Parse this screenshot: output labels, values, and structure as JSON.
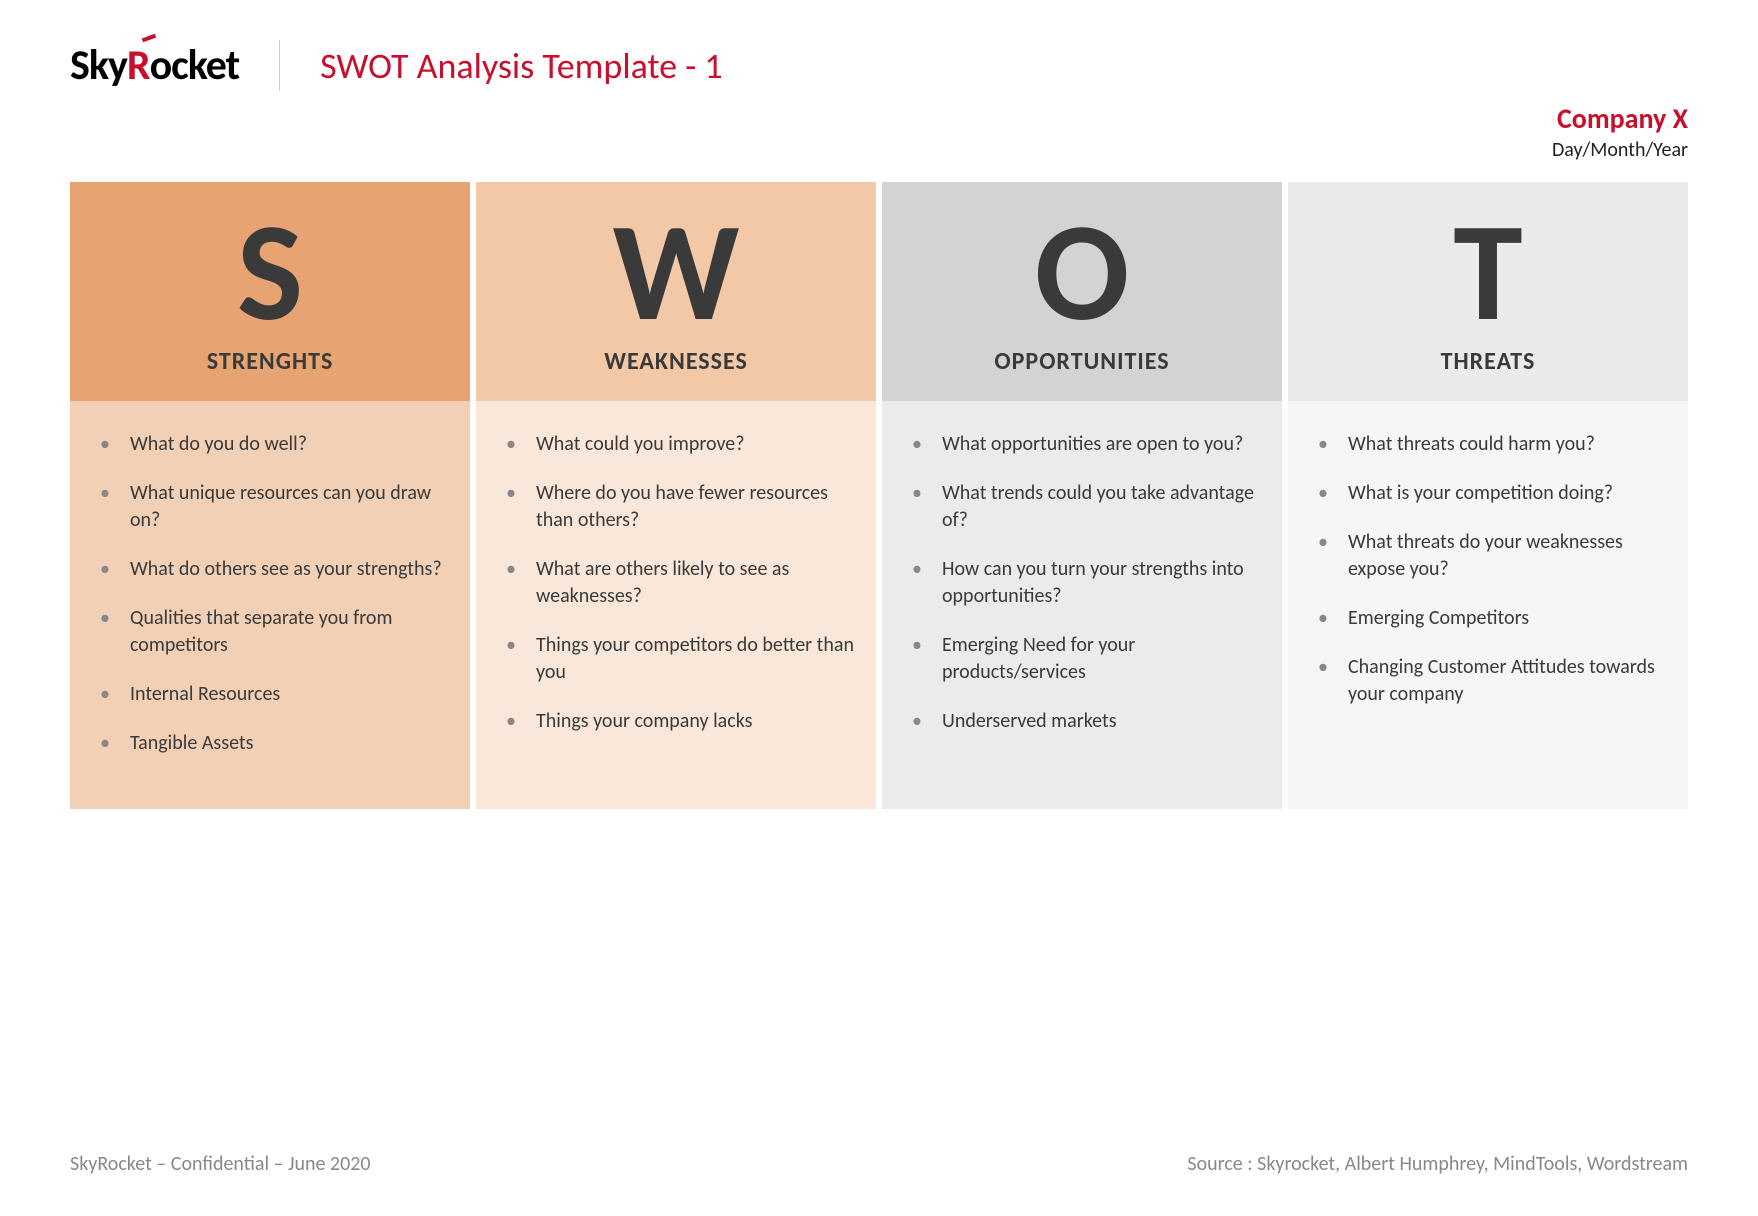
{
  "header": {
    "logo_part1": "Sky",
    "logo_r": "R",
    "logo_part2": "ocket",
    "title": "SWOT Analysis Template - 1"
  },
  "meta": {
    "company": "Company X",
    "date": "Day/Month/Year"
  },
  "colors": {
    "brand_red": "#c8102e",
    "text_dark": "#3a3a3a",
    "bullet_gray": "#888888"
  },
  "columns": [
    {
      "letter": "S",
      "label": "STRENGHTS",
      "header_bg": "#e8a373",
      "body_bg": "#f2d0b6",
      "items": [
        "What do you do well?",
        "What unique resources can you draw on?",
        "What do others see as your strengths?",
        "Qualities that separate you from competitors",
        "Internal Resources",
        "Tangible Assets"
      ]
    },
    {
      "letter": "W",
      "label": "WEAKNESSES",
      "header_bg": "#f2c8a6",
      "body_bg": "#f9e8d9",
      "items": [
        "What could you improve?",
        "Where do you have fewer resources than others?",
        "What are others likely to see as weaknesses?",
        "Things your competitors do better than you",
        "Things your company lacks"
      ]
    },
    {
      "letter": "O",
      "label": "OPPORTUNITIES",
      "header_bg": "#d3d3d3",
      "body_bg": "#eceaeb",
      "items": [
        "What opportunities are open to you?",
        "What trends could you take advantage of?",
        "How can you turn your strengths into opportunities?",
        "Emerging Need for your products/services",
        "Underserved markets"
      ]
    },
    {
      "letter": "T",
      "label": "THREATS",
      "header_bg": "#ebe9ea",
      "body_bg": "#f7f5f7",
      "items": [
        "What threats could harm you?",
        "What is your competition doing?",
        "What threats do your weaknesses expose you?",
        "Emerging Competitors",
        "Changing Customer Attitudes towards your company"
      ]
    }
  ],
  "footer": {
    "left": "SkyRocket – Confidential – June 2020",
    "right": "Source : Skyrocket, Albert Humphrey, MindTools, Wordstream"
  }
}
